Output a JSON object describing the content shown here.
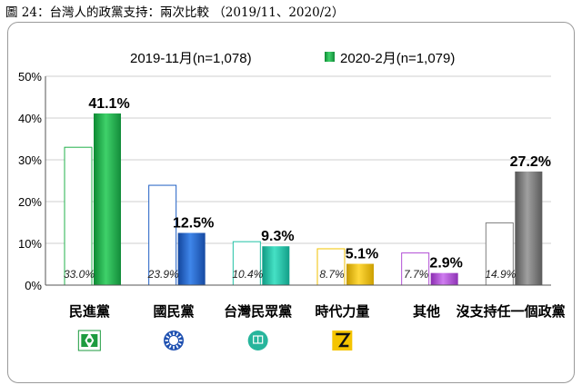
{
  "page": {
    "title": "圖 24：台灣人的政黨支持：兩次比較 （2019/11、2020/2）"
  },
  "colors": {
    "party_colors": [
      "#22b04b",
      "#1f5fc4",
      "#20c2a6",
      "#f2c200",
      "#b24fd6",
      "#808080"
    ],
    "gridline": "#cfcfcf",
    "axis": "#555555"
  },
  "chart_data": {
    "type": "bar",
    "title": "",
    "xlabel": "",
    "ylabel": "",
    "ylim": [
      0,
      50
    ],
    "yticks": [
      "0%",
      "10%",
      "20%",
      "30%",
      "40%",
      "50%"
    ],
    "grid": true,
    "legend_placement": "top",
    "categories": [
      "民進黨",
      "國民黨",
      "台灣民眾黨",
      "時代力量",
      "其他",
      "沒支持任一個政黨"
    ],
    "series": [
      {
        "name": "2019-11月(n=1,078)",
        "style": "outline",
        "values": [
          33.0,
          23.9,
          10.4,
          8.7,
          7.7,
          14.9
        ],
        "labels": [
          "33.0%",
          "23.9%",
          "10.4%",
          "8.7%",
          "7.7%",
          "14.9%"
        ]
      },
      {
        "name": "2020-2月(n=1,079)",
        "style": "filled",
        "values": [
          41.1,
          12.5,
          9.3,
          5.1,
          2.9,
          27.2
        ],
        "labels": [
          "41.1%",
          "12.5%",
          "9.3%",
          "5.1%",
          "2.9%",
          "27.2%"
        ]
      }
    ],
    "category_icons": [
      "dpp-logo-icon",
      "kmt-logo-icon",
      "tpp-logo-icon",
      "npp-logo-icon",
      "",
      ""
    ]
  }
}
